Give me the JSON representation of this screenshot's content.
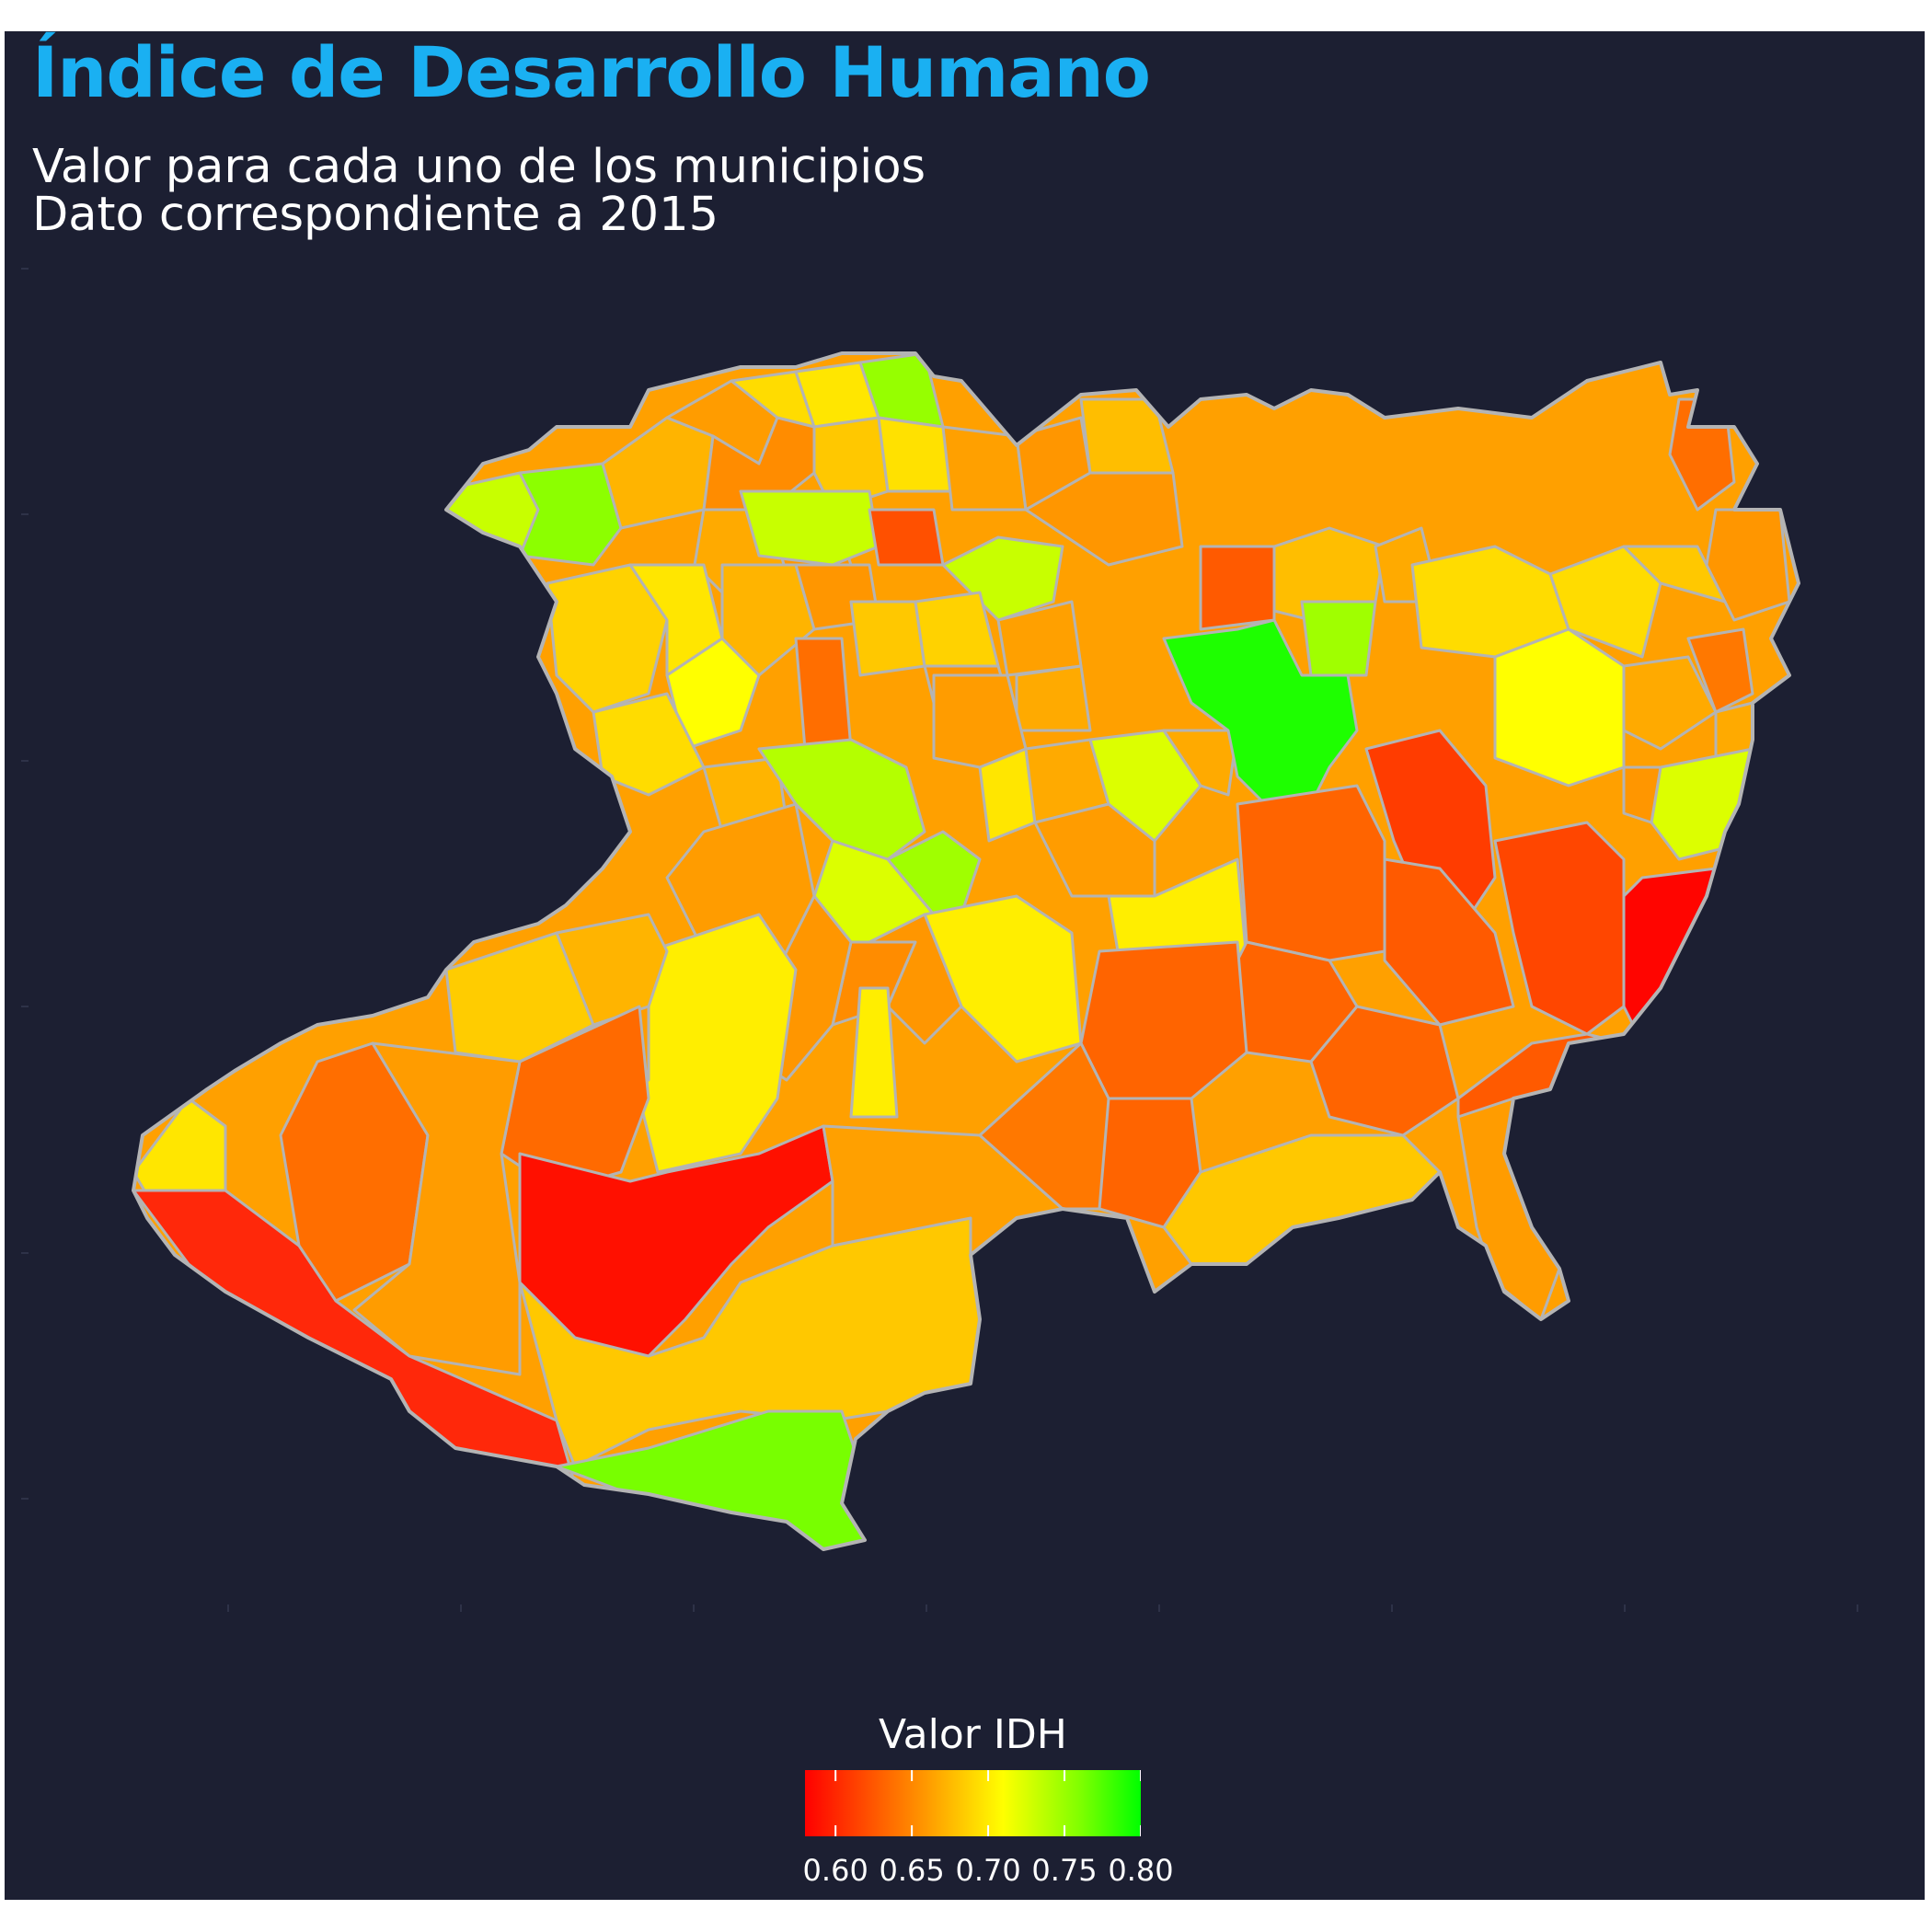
{
  "title": "Índice de Desarrollo Humano",
  "subtitle_line1": "Valor para cada uno de los municipios",
  "subtitle_line2": "Dato correspondiente a 2015",
  "legend": {
    "title": "Valor IDH",
    "min": 0.58,
    "max": 0.8,
    "ticks": [
      "0.60",
      "0.65",
      "0.70",
      "0.75",
      "0.80"
    ],
    "tick_values": [
      0.6,
      0.65,
      0.7,
      0.75,
      0.8
    ],
    "gradient_colors": [
      "#ff0000",
      "#ff9900",
      "#ffff00",
      "#7fff00",
      "#00ff00"
    ]
  },
  "colors": {
    "background": "#1c1f32",
    "title": "#1ab0f2",
    "border": "#b4b4b4"
  },
  "chart_data": {
    "type": "choropleth",
    "region": "Michoacán",
    "variable": "Valor IDH",
    "year": 2015,
    "note_values_estimated": true,
    "value_range": [
      0.58,
      0.8
    ]
  }
}
